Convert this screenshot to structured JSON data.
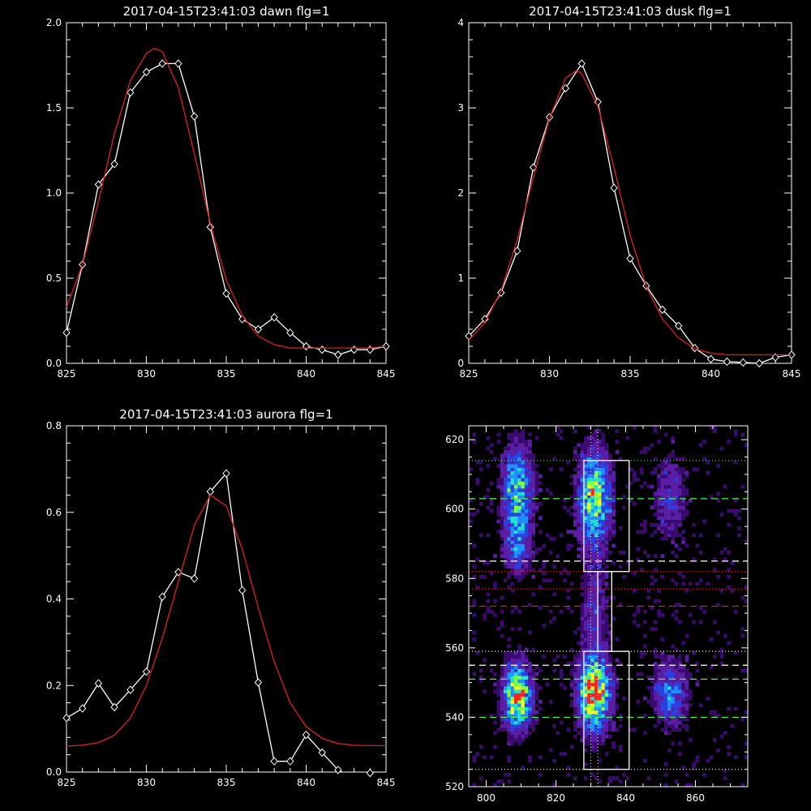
{
  "chart_data": [
    {
      "type": "line",
      "title": "2017-04-15T23:41:03 dawn flg=1",
      "xlim": [
        825,
        845
      ],
      "ylim": [
        0,
        2.0
      ],
      "xticks": [
        825,
        830,
        835,
        840,
        845
      ],
      "yticks": [
        0.0,
        0.5,
        1.0,
        1.5,
        2.0
      ],
      "ytick_labels": [
        "0.0",
        "0.5",
        "1.0",
        "1.5",
        "2.0"
      ],
      "series": [
        {
          "kind": "data",
          "color": "#ffffff",
          "marker": "diamond",
          "x": [
            825,
            826,
            827,
            828,
            829,
            830,
            831,
            832,
            833,
            834,
            835,
            836,
            837,
            838,
            839,
            840,
            841,
            842,
            843,
            844,
            845
          ],
          "y": [
            0.18,
            0.58,
            1.05,
            1.17,
            1.59,
            1.71,
            1.76,
            1.76,
            1.45,
            0.8,
            0.41,
            0.26,
            0.2,
            0.27,
            0.18,
            0.1,
            0.08,
            0.05,
            0.08,
            0.08,
            0.1
          ]
        },
        {
          "kind": "fit",
          "color": "#e0201c",
          "x": [
            825,
            826,
            827,
            828,
            829,
            830,
            830.5,
            831,
            832,
            833,
            834,
            835,
            836,
            837,
            838,
            839,
            840,
            841,
            842,
            843,
            844,
            845
          ],
          "y": [
            0.33,
            0.58,
            0.95,
            1.35,
            1.66,
            1.82,
            1.85,
            1.83,
            1.62,
            1.23,
            0.82,
            0.49,
            0.28,
            0.16,
            0.11,
            0.09,
            0.09,
            0.09,
            0.09,
            0.09,
            0.09,
            0.1
          ]
        }
      ]
    },
    {
      "type": "line",
      "title": "2017-04-15T23:41:03 dusk flg=1",
      "xlim": [
        825,
        845
      ],
      "ylim": [
        0,
        4
      ],
      "xticks": [
        825,
        830,
        835,
        840,
        845
      ],
      "yticks": [
        0,
        1,
        2,
        3,
        4
      ],
      "ytick_labels": [
        "0",
        "1",
        "2",
        "3",
        "4"
      ],
      "series": [
        {
          "kind": "data",
          "color": "#ffffff",
          "marker": "diamond",
          "x": [
            825,
            826,
            827,
            828,
            829,
            830,
            831,
            832,
            833,
            834,
            835,
            836,
            837,
            838,
            839,
            840,
            841,
            842,
            843,
            844,
            845
          ],
          "y": [
            0.32,
            0.52,
            0.83,
            1.32,
            2.3,
            2.89,
            3.23,
            3.52,
            3.07,
            2.06,
            1.23,
            0.91,
            0.63,
            0.44,
            0.18,
            0.05,
            0.02,
            0.01,
            0.0,
            0.07,
            0.1
          ]
        },
        {
          "kind": "fit",
          "color": "#e0201c",
          "x": [
            825,
            826,
            827,
            828,
            829,
            830,
            831,
            831.7,
            832,
            833,
            834,
            835,
            836,
            837,
            838,
            839,
            840,
            841,
            842,
            843,
            844,
            845
          ],
          "y": [
            0.27,
            0.48,
            0.85,
            1.45,
            2.18,
            2.88,
            3.35,
            3.44,
            3.4,
            3.02,
            2.3,
            1.5,
            0.9,
            0.52,
            0.3,
            0.17,
            0.12,
            0.1,
            0.1,
            0.1,
            0.1,
            0.1
          ]
        }
      ]
    },
    {
      "type": "line",
      "title": "2017-04-15T23:41:03 aurora flg=1",
      "xlim": [
        825,
        845
      ],
      "ylim": [
        0,
        0.8
      ],
      "xticks": [
        825,
        830,
        835,
        840,
        845
      ],
      "yticks": [
        0.0,
        0.2,
        0.4,
        0.6,
        0.8
      ],
      "ytick_labels": [
        "0.0",
        "0.2",
        "0.4",
        "0.6",
        "0.8"
      ],
      "series": [
        {
          "kind": "data",
          "color": "#ffffff",
          "marker": "diamond",
          "x": [
            825,
            826,
            827,
            828,
            829,
            830,
            831,
            832,
            833,
            834,
            835,
            836,
            837,
            838,
            839,
            840,
            841,
            842,
            843,
            844
          ],
          "y": [
            0.125,
            0.147,
            0.205,
            0.15,
            0.19,
            0.232,
            0.405,
            0.462,
            0.447,
            0.648,
            0.69,
            0.42,
            0.207,
            0.025,
            0.025,
            0.086,
            0.045,
            0.005,
            -0.015,
            -0.002
          ]
        },
        {
          "kind": "fit",
          "color": "#e0201c",
          "x": [
            825,
            826,
            827,
            828,
            829,
            830,
            831,
            832,
            833,
            834,
            835,
            836,
            837,
            838,
            839,
            840,
            841,
            842,
            843,
            844,
            845
          ],
          "y": [
            0.06,
            0.062,
            0.068,
            0.085,
            0.125,
            0.2,
            0.31,
            0.44,
            0.57,
            0.64,
            0.615,
            0.515,
            0.38,
            0.255,
            0.16,
            0.105,
            0.078,
            0.066,
            0.062,
            0.061,
            0.061
          ]
        }
      ]
    },
    {
      "type": "heatmap",
      "xlim": [
        795,
        875
      ],
      "ylim": [
        520,
        624
      ],
      "xticks": [
        800,
        820,
        840,
        860
      ],
      "yticks": [
        520,
        540,
        560,
        580,
        600,
        620
      ],
      "colormap": [
        "#000000",
        "#3a0a6e",
        "#5a1ea6",
        "#2a40e0",
        "#2090ff",
        "#20e0d0",
        "#80ff40",
        "#f0ff20",
        "#ff2020"
      ],
      "intensity_blobs": [
        {
          "x": 809,
          "y": 546,
          "sx": 2.6,
          "sy": 6,
          "peak": 0.95
        },
        {
          "x": 809,
          "y": 606,
          "sx": 2.8,
          "sy": 8,
          "peak": 0.62
        },
        {
          "x": 809,
          "y": 590,
          "sx": 2.6,
          "sy": 6,
          "peak": 0.38
        },
        {
          "x": 831,
          "y": 547,
          "sx": 3.0,
          "sy": 7,
          "peak": 1.0
        },
        {
          "x": 831,
          "y": 603,
          "sx": 3.0,
          "sy": 9,
          "peak": 0.78
        },
        {
          "x": 831,
          "y": 570,
          "sx": 2.5,
          "sy": 10,
          "peak": 0.22
        },
        {
          "x": 853,
          "y": 547,
          "sx": 3.2,
          "sy": 6,
          "peak": 0.42
        },
        {
          "x": 853,
          "y": 603,
          "sx": 3.0,
          "sy": 8,
          "peak": 0.25
        }
      ],
      "rectangles": [
        {
          "x0": 828,
          "x1": 841,
          "y0": 582,
          "y1": 614,
          "color": "#ffffff"
        },
        {
          "x0": 832,
          "x1": 836,
          "y0": 559,
          "y1": 582,
          "color": "#ffffff"
        },
        {
          "x0": 828,
          "x1": 841,
          "y0": 525,
          "y1": 559,
          "color": "#ffffff"
        }
      ],
      "hlines": [
        {
          "y": 614,
          "color": "#40ff40",
          "style": "dotted"
        },
        {
          "y": 603,
          "color": "#40ff40",
          "style": "dashed"
        },
        {
          "y": 585,
          "color": "#ffffff",
          "style": "dashed"
        },
        {
          "y": 582,
          "color": "#e02020",
          "style": "dotted"
        },
        {
          "y": 577,
          "color": "#e02020",
          "style": "dotted"
        },
        {
          "y": 572,
          "color": "#e02020",
          "style": "dashed"
        },
        {
          "y": 559,
          "color": "#ffffff",
          "style": "dotted"
        },
        {
          "y": 555,
          "color": "#ffffff",
          "style": "dashed"
        },
        {
          "y": 551,
          "color": "#40ff40",
          "style": "dashed"
        },
        {
          "y": 540,
          "color": "#40ff40",
          "style": "dashed"
        },
        {
          "y": 525,
          "color": "#ffffff",
          "style": "dotted"
        }
      ],
      "vlines": [
        {
          "x": 830,
          "color": "#ffffff",
          "style": "dotted"
        },
        {
          "x": 832,
          "color": "#ffffff",
          "style": "dotted"
        }
      ]
    }
  ]
}
